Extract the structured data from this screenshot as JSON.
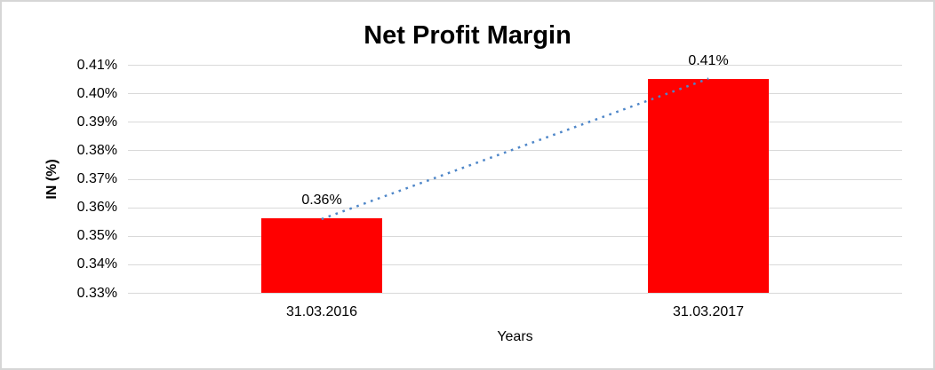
{
  "chart_data": {
    "type": "bar",
    "title": "Net Profit Margin",
    "xlabel": "Years",
    "ylabel": "IN (%)",
    "categories": [
      "31.03.2016",
      "31.03.2017"
    ],
    "values": [
      0.356,
      0.405
    ],
    "data_labels": [
      "0.36%",
      "0.41%"
    ],
    "ylim": [
      0.33,
      0.41
    ],
    "ytick_step": 0.01,
    "ytick_labels_top_to_bottom": [
      "0.41%",
      "0.40%",
      "0.39%",
      "0.38%",
      "0.37%",
      "0.36%",
      "0.35%",
      "0.34%",
      "0.33%"
    ],
    "grid": true,
    "legend": "none",
    "colors": {
      "bar": "#ff0000",
      "gridline": "#d9d9d9",
      "frame_border": "#d6d6d6",
      "text": "#000000",
      "background": "#ffffff",
      "trendline": "#4e86c8"
    },
    "trendline": {
      "type": "linear",
      "style": "dotted",
      "color": "#4e86c8",
      "from_value": 0.356,
      "to_value": 0.405
    }
  }
}
